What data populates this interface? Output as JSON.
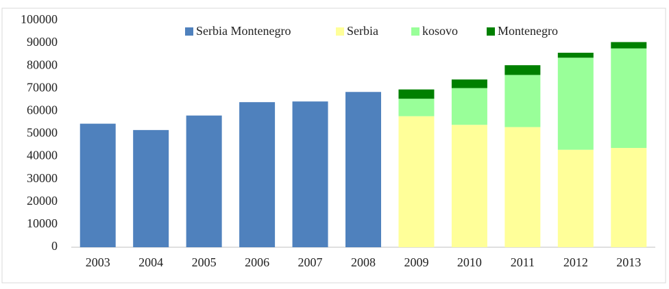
{
  "chart_data": {
    "type": "stacked_bar",
    "categories": [
      "2003",
      "2004",
      "2005",
      "2006",
      "2007",
      "2008",
      "2009",
      "2010",
      "2011",
      "2012",
      "2013"
    ],
    "series": [
      {
        "name": "Serbia Montenegro",
        "color": "#4f81bd",
        "values": [
          54500,
          51700,
          58100,
          64000,
          64300,
          68500,
          null,
          null,
          null,
          null,
          null
        ]
      },
      {
        "name": "Serbia",
        "color": "#ffff99",
        "values": [
          null,
          null,
          null,
          null,
          null,
          null,
          57800,
          54000,
          53000,
          43000,
          43800
        ]
      },
      {
        "name": "kosovo",
        "color": "#99ff99",
        "values": [
          null,
          null,
          null,
          null,
          null,
          null,
          7700,
          16200,
          23000,
          40600,
          43900
        ]
      },
      {
        "name": "Montenegro",
        "color": "#008000",
        "values": [
          null,
          null,
          null,
          null,
          null,
          null,
          4100,
          3800,
          4300,
          2200,
          2800
        ]
      }
    ],
    "ylim": [
      0,
      100000
    ],
    "yticks": [
      0,
      10000,
      20000,
      30000,
      40000,
      50000,
      60000,
      70000,
      80000,
      90000,
      100000
    ],
    "legend": "top"
  }
}
